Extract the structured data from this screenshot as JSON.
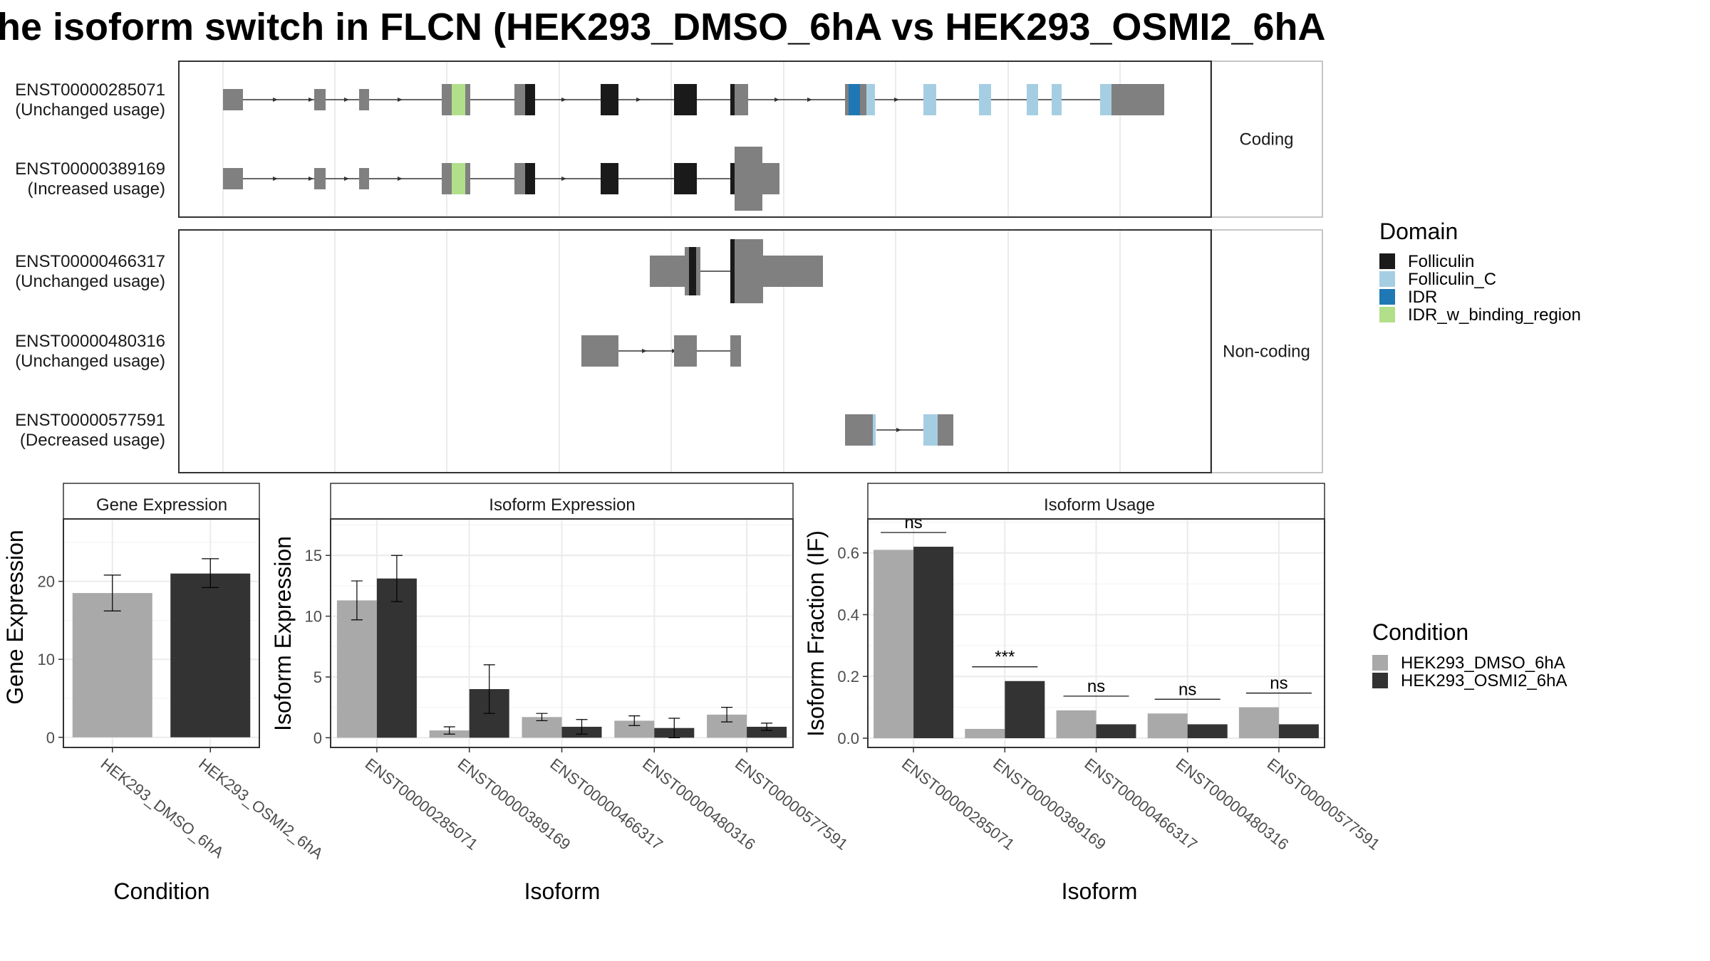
{
  "title": "he isoform switch in FLCN (HEK293_DMSO_6hA vs HEK293_OSMI2_6hA",
  "colors": {
    "exon": "#808080",
    "Folliculin": "#1a1a1a",
    "Folliculin_C": "#a6cee3",
    "IDR": "#1f78b4",
    "IDR_w_binding_region": "#b2df8a",
    "dmso": "#a9a9a9",
    "osmi": "#333333"
  },
  "legend_domain": {
    "title": "Domain",
    "items": [
      "Folliculin",
      "Folliculin_C",
      "IDR",
      "IDR_w_binding_region"
    ]
  },
  "legend_condition": {
    "title": "Condition",
    "items": [
      "HEK293_DMSO_6hA",
      "HEK293_OSMI2_6hA"
    ]
  },
  "structure": {
    "facets": [
      "Coding",
      "Non-coding"
    ],
    "transcripts": [
      {
        "id": "ENST00000285071",
        "usage": "(Unchanged usage)",
        "facet": 0
      },
      {
        "id": "ENST00000389169",
        "usage": "(Increased usage)",
        "facet": 0
      },
      {
        "id": "ENST00000466317",
        "usage": "(Unchanged usage)",
        "facet": 1
      },
      {
        "id": "ENST00000480316",
        "usage": "(Unchanged usage)",
        "facet": 1
      },
      {
        "id": "ENST00000577591",
        "usage": "(Decreased usage)",
        "facet": 1
      }
    ]
  },
  "chart_data": [
    {
      "type": "bar",
      "panel": "Gene Expression",
      "xlabel": "Condition",
      "ylabel": "Gene Expression",
      "categories": [
        "HEK293_DMSO_6hA",
        "HEK293_OSMI2_6hA"
      ],
      "values": [
        18.5,
        21.0
      ],
      "errors": [
        [
          16.2,
          20.8
        ],
        [
          19.2,
          22.9
        ]
      ],
      "yticks": [
        0,
        10,
        20
      ],
      "ylim": [
        -1.3,
        28
      ]
    },
    {
      "type": "bar",
      "panel": "Isoform Expression",
      "xlabel": "Isoform",
      "ylabel": "Isoform Expression",
      "categories": [
        "ENST00000285071",
        "ENST00000389169",
        "ENST00000466317",
        "ENST00000480316",
        "ENST00000577591"
      ],
      "series": [
        {
          "name": "HEK293_DMSO_6hA",
          "values": [
            11.3,
            0.6,
            1.7,
            1.4,
            1.9
          ],
          "errors": [
            [
              9.7,
              12.9
            ],
            [
              0.3,
              0.9
            ],
            [
              1.4,
              2.0
            ],
            [
              1.0,
              1.8
            ],
            [
              1.3,
              2.5
            ]
          ]
        },
        {
          "name": "HEK293_OSMI2_6hA",
          "values": [
            13.1,
            4.0,
            0.9,
            0.8,
            0.9
          ],
          "errors": [
            [
              11.2,
              15.0
            ],
            [
              2.0,
              6.0
            ],
            [
              0.3,
              1.5
            ],
            [
              0.0,
              1.6
            ],
            [
              0.6,
              1.2
            ]
          ]
        }
      ],
      "yticks": [
        0,
        5,
        10,
        15
      ],
      "ylim": [
        -0.8,
        18
      ]
    },
    {
      "type": "bar",
      "panel": "Isoform Usage",
      "xlabel": "Isoform",
      "ylabel": "Isoform Fraction (IF)",
      "categories": [
        "ENST00000285071",
        "ENST00000389169",
        "ENST00000466317",
        "ENST00000480316",
        "ENST00000577591"
      ],
      "series": [
        {
          "name": "HEK293_DMSO_6hA",
          "values": [
            0.61,
            0.03,
            0.09,
            0.08,
            0.1
          ]
        },
        {
          "name": "HEK293_OSMI2_6hA",
          "values": [
            0.62,
            0.185,
            0.045,
            0.045,
            0.045
          ]
        }
      ],
      "significance": [
        "ns",
        "***",
        "ns",
        "ns",
        "ns"
      ],
      "yticks": [
        0.0,
        0.2,
        0.4,
        0.6
      ],
      "ylabels": [
        "0.0",
        "0.2",
        "0.4",
        "0.6"
      ],
      "ylim": [
        -0.03,
        0.71
      ]
    }
  ]
}
